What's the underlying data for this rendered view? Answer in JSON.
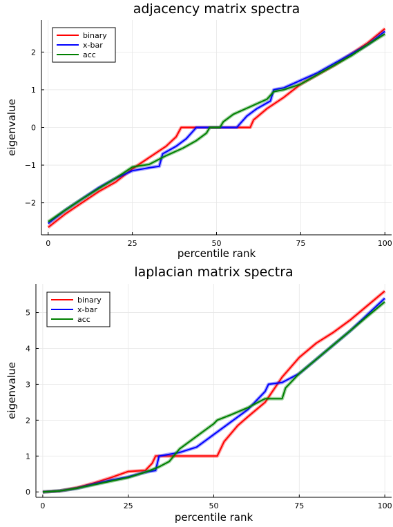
{
  "chart_data": [
    {
      "type": "line",
      "title": "adjacency matrix spectra",
      "xlabel": "percentile rank",
      "ylabel": "eigenvalue",
      "xlim": [
        -2,
        102
      ],
      "ylim": [
        -2.85,
        2.85
      ],
      "xticks": [
        0,
        25,
        50,
        75,
        100
      ],
      "yticks": [
        -2,
        -1,
        0,
        1,
        2
      ],
      "grid": true,
      "legend": "top-left",
      "series": [
        {
          "name": "binary",
          "color": "#ff0000",
          "points": [
            [
              0,
              -2.65
            ],
            [
              5,
              -2.3
            ],
            [
              10,
              -2.0
            ],
            [
              15,
              -1.7
            ],
            [
              20,
              -1.45
            ],
            [
              25,
              -1.1
            ],
            [
              30,
              -0.8
            ],
            [
              35,
              -0.5
            ],
            [
              38,
              -0.25
            ],
            [
              39.5,
              0
            ],
            [
              60,
              0
            ],
            [
              61,
              0.2
            ],
            [
              65,
              0.5
            ],
            [
              70,
              0.8
            ],
            [
              75,
              1.15
            ],
            [
              80,
              1.4
            ],
            [
              85,
              1.65
            ],
            [
              90,
              1.95
            ],
            [
              95,
              2.25
            ],
            [
              100,
              2.62
            ]
          ]
        },
        {
          "name": "x-bar",
          "color": "#0000ff",
          "points": [
            [
              0,
              -2.55
            ],
            [
              5,
              -2.2
            ],
            [
              10,
              -1.9
            ],
            [
              15,
              -1.6
            ],
            [
              20,
              -1.35
            ],
            [
              25,
              -1.15
            ],
            [
              30,
              -1.07
            ],
            [
              33,
              -1.03
            ],
            [
              34,
              -0.7
            ],
            [
              38,
              -0.5
            ],
            [
              41,
              -0.3
            ],
            [
              43,
              -0.1
            ],
            [
              44,
              0
            ],
            [
              56,
              0
            ],
            [
              57,
              0.1
            ],
            [
              59,
              0.3
            ],
            [
              62,
              0.5
            ],
            [
              66,
              0.7
            ],
            [
              67,
              1.0
            ],
            [
              70,
              1.05
            ],
            [
              75,
              1.25
            ],
            [
              80,
              1.45
            ],
            [
              85,
              1.7
            ],
            [
              90,
              1.95
            ],
            [
              95,
              2.2
            ],
            [
              100,
              2.55
            ]
          ]
        },
        {
          "name": "acc",
          "color": "#008000",
          "points": [
            [
              0,
              -2.5
            ],
            [
              5,
              -2.2
            ],
            [
              10,
              -1.9
            ],
            [
              15,
              -1.62
            ],
            [
              20,
              -1.35
            ],
            [
              25,
              -1.05
            ],
            [
              30,
              -0.98
            ],
            [
              35,
              -0.75
            ],
            [
              40,
              -0.55
            ],
            [
              44,
              -0.35
            ],
            [
              47,
              -0.15
            ],
            [
              48,
              0
            ],
            [
              51,
              0
            ],
            [
              52,
              0.15
            ],
            [
              55,
              0.35
            ],
            [
              60,
              0.55
            ],
            [
              65,
              0.75
            ],
            [
              67,
              0.95
            ],
            [
              70,
              1.0
            ],
            [
              75,
              1.15
            ],
            [
              80,
              1.4
            ],
            [
              85,
              1.65
            ],
            [
              90,
              1.9
            ],
            [
              95,
              2.2
            ],
            [
              100,
              2.48
            ]
          ]
        }
      ]
    },
    {
      "type": "line",
      "title": "laplacian matrix spectra",
      "xlabel": "percentile rank",
      "ylabel": "eigenvalue",
      "xlim": [
        -2,
        102
      ],
      "ylim": [
        -0.15,
        5.8
      ],
      "xticks": [
        0,
        25,
        50,
        75,
        100
      ],
      "yticks": [
        0,
        1,
        2,
        3,
        4,
        5
      ],
      "grid": true,
      "legend": "top-left",
      "series": [
        {
          "name": "binary",
          "color": "#ff0000",
          "points": [
            [
              0,
              0
            ],
            [
              5,
              0.03
            ],
            [
              10,
              0.12
            ],
            [
              15,
              0.25
            ],
            [
              20,
              0.4
            ],
            [
              25,
              0.57
            ],
            [
              30,
              0.6
            ],
            [
              32,
              0.8
            ],
            [
              33,
              1.0
            ],
            [
              51,
              1.0
            ],
            [
              53,
              1.4
            ],
            [
              57,
              1.85
            ],
            [
              60,
              2.1
            ],
            [
              65,
              2.5
            ],
            [
              70,
              3.2
            ],
            [
              75,
              3.75
            ],
            [
              80,
              4.15
            ],
            [
              85,
              4.45
            ],
            [
              90,
              4.8
            ],
            [
              95,
              5.2
            ],
            [
              100,
              5.6
            ]
          ]
        },
        {
          "name": "x-bar",
          "color": "#0000ff",
          "points": [
            [
              0,
              0
            ],
            [
              5,
              0.03
            ],
            [
              10,
              0.1
            ],
            [
              15,
              0.22
            ],
            [
              20,
              0.33
            ],
            [
              25,
              0.42
            ],
            [
              30,
              0.55
            ],
            [
              33,
              0.6
            ],
            [
              34,
              1.0
            ],
            [
              40,
              1.1
            ],
            [
              45,
              1.25
            ],
            [
              50,
              1.6
            ],
            [
              55,
              1.95
            ],
            [
              60,
              2.3
            ],
            [
              65,
              2.8
            ],
            [
              66,
              3.0
            ],
            [
              70,
              3.05
            ],
            [
              75,
              3.3
            ],
            [
              80,
              3.7
            ],
            [
              85,
              4.1
            ],
            [
              90,
              4.5
            ],
            [
              95,
              4.95
            ],
            [
              100,
              5.4
            ]
          ]
        },
        {
          "name": "acc",
          "color": "#008000",
          "points": [
            [
              0,
              0
            ],
            [
              5,
              0.03
            ],
            [
              10,
              0.1
            ],
            [
              15,
              0.2
            ],
            [
              20,
              0.3
            ],
            [
              25,
              0.4
            ],
            [
              30,
              0.55
            ],
            [
              34,
              0.7
            ],
            [
              37,
              0.85
            ],
            [
              40,
              1.2
            ],
            [
              45,
              1.55
            ],
            [
              50,
              1.9
            ],
            [
              51,
              2.0
            ],
            [
              55,
              2.15
            ],
            [
              60,
              2.35
            ],
            [
              64,
              2.55
            ],
            [
              65,
              2.6
            ],
            [
              70,
              2.6
            ],
            [
              71,
              2.9
            ],
            [
              75,
              3.3
            ],
            [
              80,
              3.7
            ],
            [
              85,
              4.1
            ],
            [
              90,
              4.5
            ],
            [
              95,
              4.9
            ],
            [
              100,
              5.3
            ]
          ]
        }
      ]
    }
  ]
}
